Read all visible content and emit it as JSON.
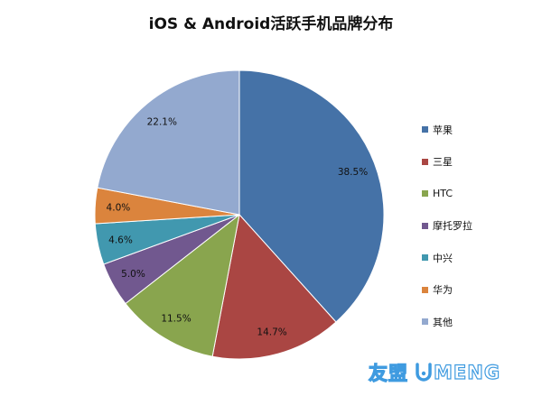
{
  "chart_data": {
    "type": "pie",
    "title": "iOS & Android活跃手机品牌分布",
    "categories": [
      "苹果",
      "三星",
      "HTC",
      "摩托罗拉",
      "中兴",
      "华为",
      "其他"
    ],
    "values": [
      38.5,
      14.7,
      11.5,
      5.0,
      4.6,
      4.0,
      22.1
    ],
    "labels": [
      "38.5%",
      "14.7%",
      "11.5%",
      "5.0%",
      "4.6%",
      "4.0%",
      "22.1%"
    ],
    "colors": [
      "#4572a7",
      "#aa4643",
      "#89a54e",
      "#71588f",
      "#4198af",
      "#db843d",
      "#93a9cf"
    ],
    "legend_position": "right"
  },
  "watermark": {
    "text_cn": "友盟",
    "text_en": "MENG"
  }
}
